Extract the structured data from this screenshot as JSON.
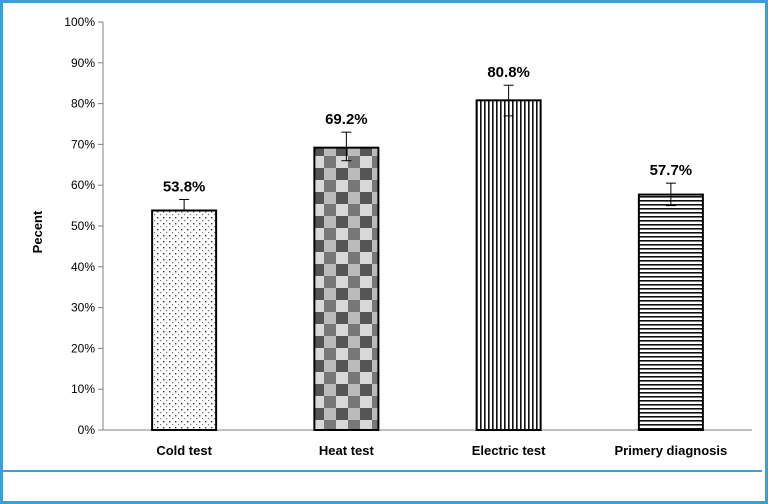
{
  "chart_data": {
    "type": "bar",
    "categories": [
      "Cold test",
      "Heat test",
      "Electric test",
      "Primery diagnosis"
    ],
    "values": [
      53.8,
      69.2,
      80.8,
      57.7
    ],
    "data_labels": [
      "53.8%",
      "69.2%",
      "80.8%",
      "57.7%"
    ],
    "error_bars": [
      {
        "low": 53.8,
        "high": 56.5
      },
      {
        "low": 66.0,
        "high": 73.0
      },
      {
        "low": 77.0,
        "high": 84.5
      },
      {
        "low": 55.0,
        "high": 60.5
      }
    ],
    "ylabel": "Pecent",
    "xlabel": "",
    "ylim": [
      0,
      100
    ],
    "yticks": [
      "0%",
      "10%",
      "20%",
      "30%",
      "40%",
      "50%",
      "60%",
      "70%",
      "80%",
      "90%",
      "100%"
    ],
    "patterns": [
      "dots",
      "checker",
      "vertical-lines",
      "horizontal-lines"
    ],
    "grid": false,
    "legend": "none"
  },
  "colors": {
    "frame": "#3aa0d8",
    "bar_stroke": "#000000",
    "axis": "#808080"
  }
}
